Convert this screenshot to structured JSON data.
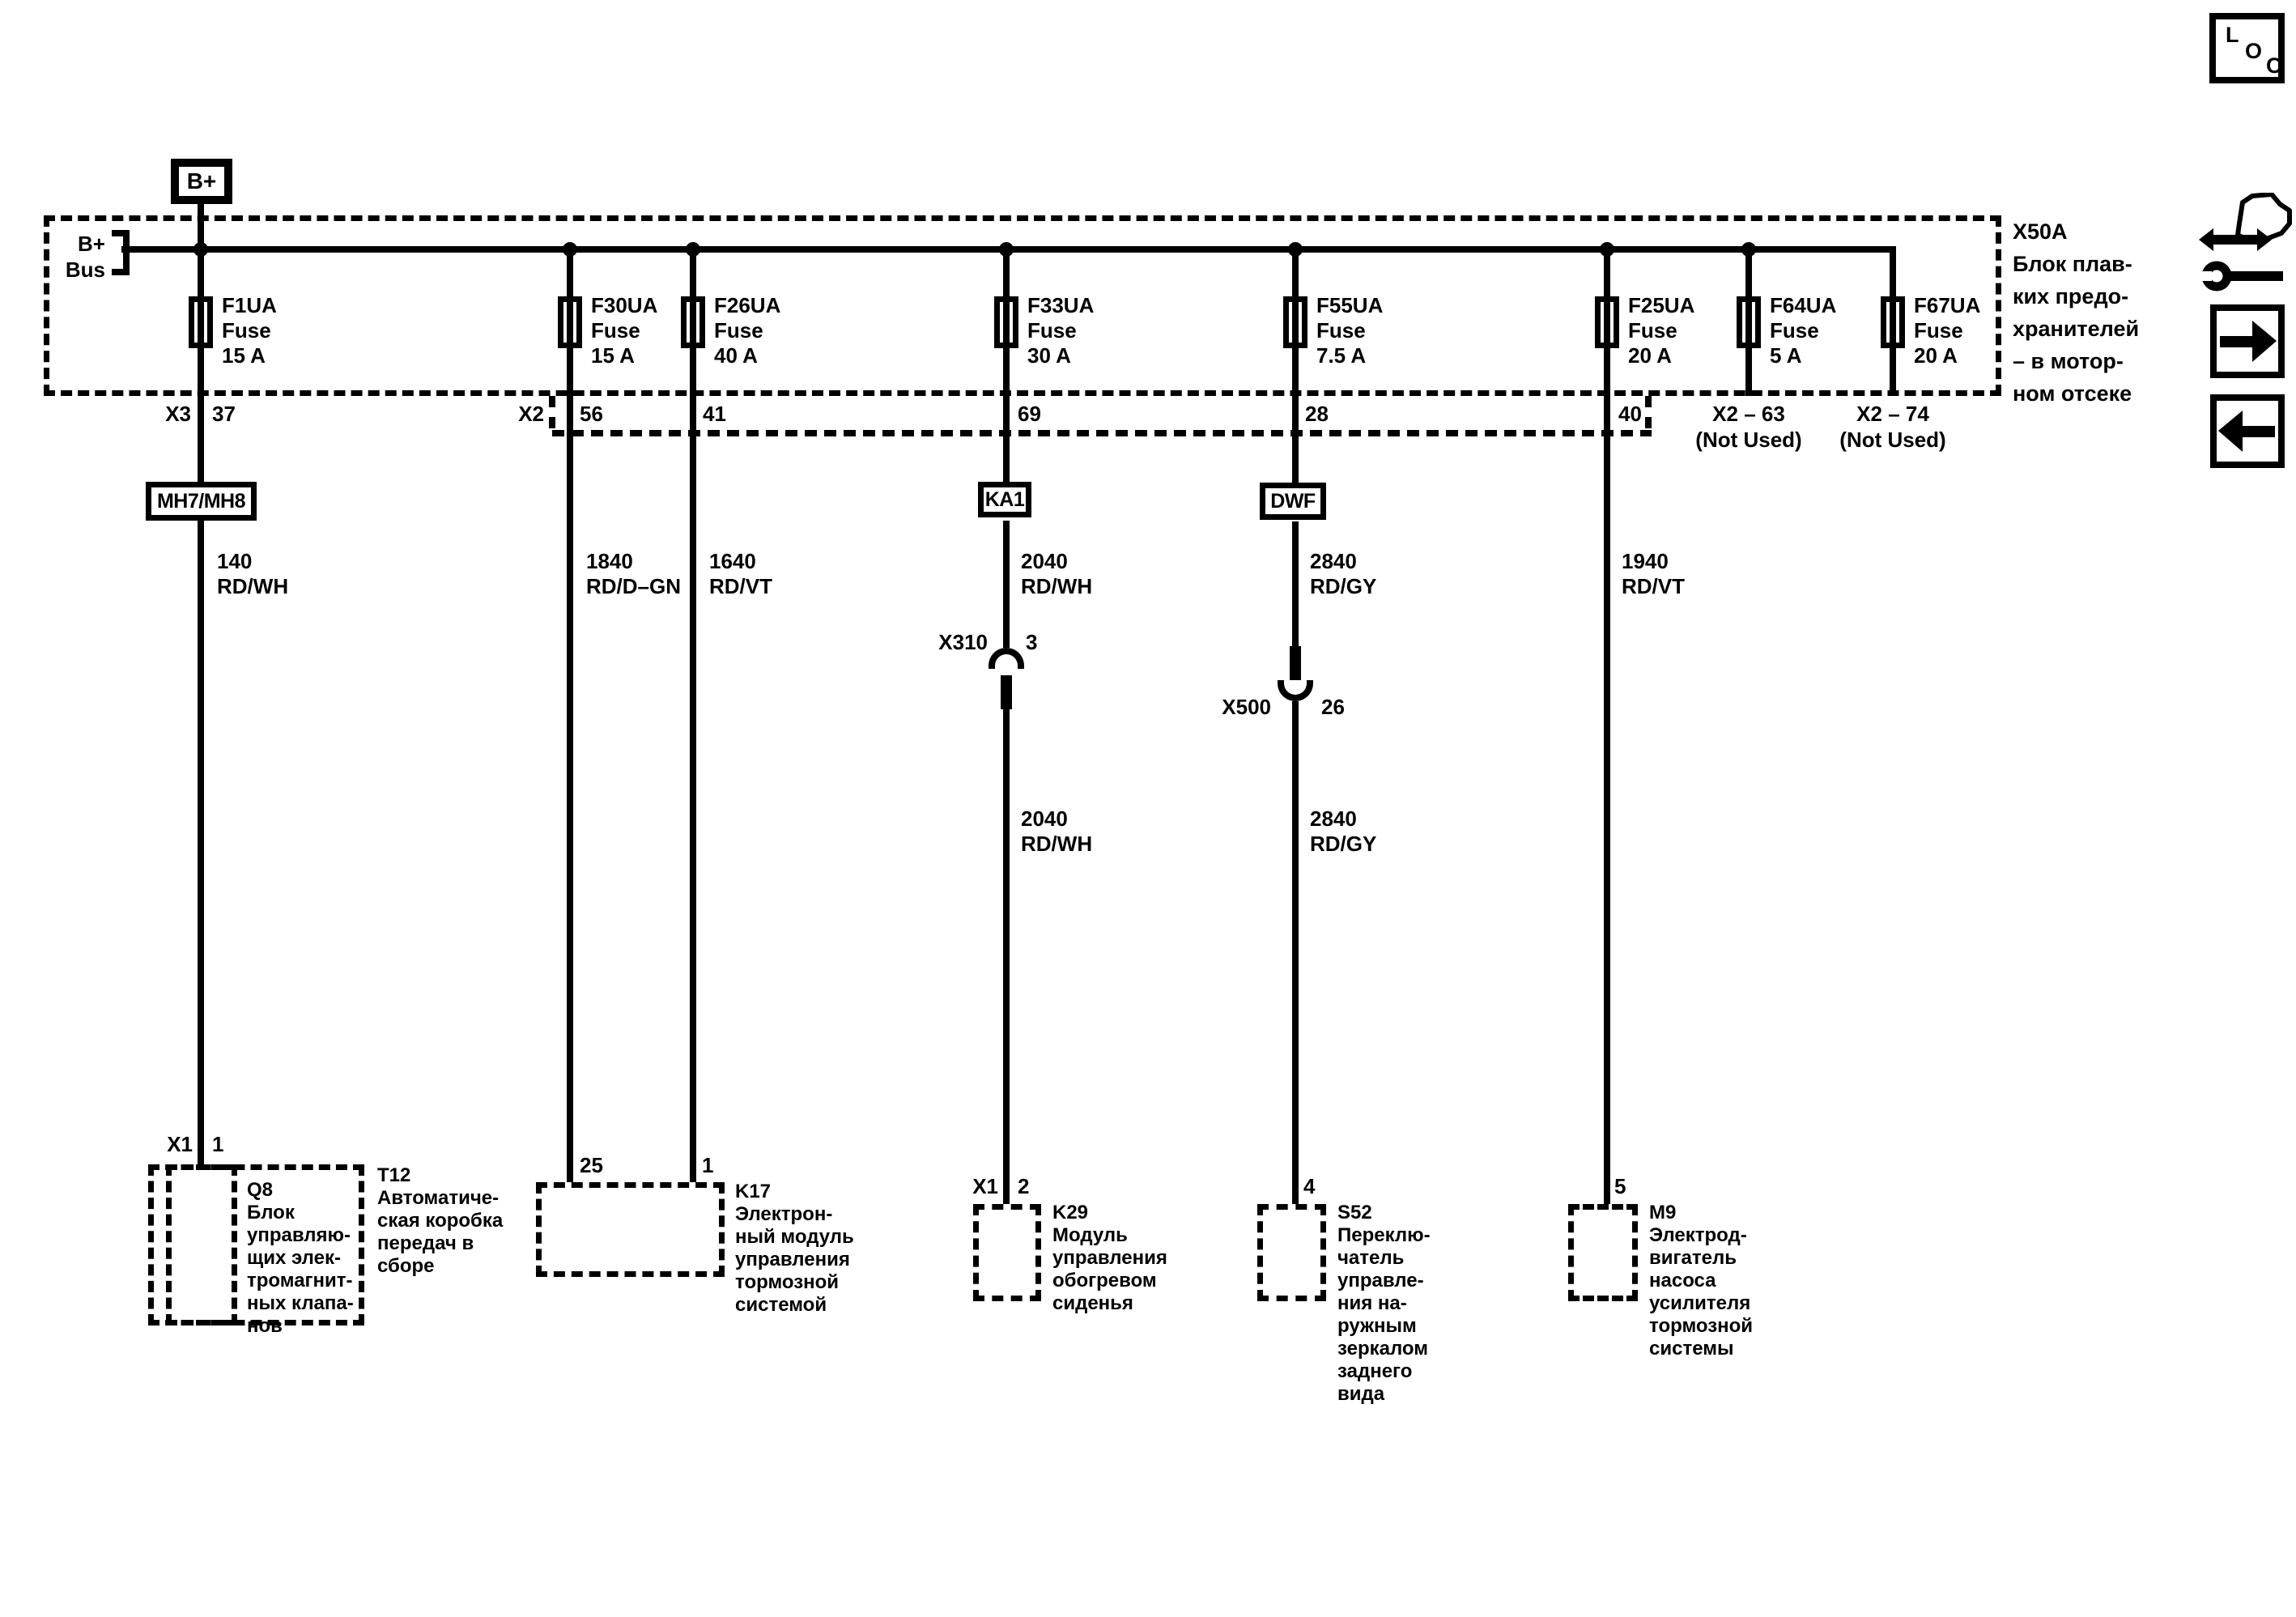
{
  "diagram": {
    "power_label": "B+",
    "bus_label_1": "B+",
    "bus_label_2": "Bus",
    "fuse_block": {
      "id": "X50A",
      "desc": [
        "Блок плав-",
        "ких предо-",
        "хранителей",
        "– в мотор-",
        "ном отсеке"
      ]
    },
    "fuses": [
      {
        "id": "F1UA",
        "kind": "Fuse",
        "rating": "15 A"
      },
      {
        "id": "F30UA",
        "kind": "Fuse",
        "rating": "15 A"
      },
      {
        "id": "F26UA",
        "kind": "Fuse",
        "rating": "40 A"
      },
      {
        "id": "F33UA",
        "kind": "Fuse",
        "rating": "30 A"
      },
      {
        "id": "F55UA",
        "kind": "Fuse",
        "rating": "7.5 A"
      },
      {
        "id": "F25UA",
        "kind": "Fuse",
        "rating": "20 A"
      },
      {
        "id": "F64UA",
        "kind": "Fuse",
        "rating": "5 A"
      },
      {
        "id": "F67UA",
        "kind": "Fuse",
        "rating": "20 A"
      }
    ],
    "top_connectors": {
      "x3_id": "X3",
      "x3_pin": "37",
      "x2_id": "X2",
      "x2_pins": [
        "56",
        "41",
        "69",
        "28",
        "40"
      ],
      "unused": [
        {
          "id": "X2 – 63",
          "note": "(Not Used)"
        },
        {
          "id": "X2 – 74",
          "note": "(Not Used)"
        }
      ]
    },
    "inline_labels": [
      "MH7/MH8",
      "KA1",
      "DWF"
    ],
    "wires_upper": [
      {
        "code": "140",
        "color": "RD/WH"
      },
      {
        "code": "1840",
        "color": "RD/D–GN"
      },
      {
        "code": "1640",
        "color": "RD/VT"
      },
      {
        "code": "2040",
        "color": "RD/WH"
      },
      {
        "code": "2840",
        "color": "RD/GY"
      },
      {
        "code": "1940",
        "color": "RD/VT"
      }
    ],
    "splices": [
      {
        "id": "X310",
        "pin": "3"
      },
      {
        "id": "X500",
        "pin": "26"
      }
    ],
    "wires_lower": [
      {
        "code": "2040",
        "color": "RD/WH"
      },
      {
        "code": "2840",
        "color": "RD/GY"
      }
    ],
    "components": {
      "q8": {
        "pin_conn": "X1",
        "pin": "1",
        "id": "Q8",
        "desc": [
          "Блок",
          "управляю-",
          "щих элек-",
          "тромагнит-",
          "ных клапа-",
          "нов"
        ]
      },
      "t12": {
        "id": "T12",
        "desc": [
          "Автоматиче-",
          "ская коробка",
          "передач в",
          "сборе"
        ]
      },
      "k17": {
        "pin_left": "25",
        "pin_right": "1",
        "id": "K17",
        "desc": [
          "Электрон-",
          "ный модуль",
          "управления",
          "тормозной",
          "системой"
        ]
      },
      "k29": {
        "pin_conn": "X1",
        "pin": "2",
        "id": "K29",
        "desc": [
          "Модуль",
          "управления",
          "обогревом",
          "сиденья"
        ]
      },
      "s52": {
        "pin": "4",
        "id": "S52",
        "desc": [
          "Переклю-",
          "чатель",
          "управле-",
          "ния на-",
          "ружным",
          "зеркалом",
          "заднего",
          "вида"
        ]
      },
      "m9": {
        "pin": "5",
        "id": "M9",
        "desc": [
          "Электрод-",
          "вигатель",
          "насоса",
          "усилителя",
          "тормозной",
          "системы"
        ]
      }
    },
    "icons": {
      "loc": [
        "L",
        "O",
        "C"
      ]
    }
  }
}
